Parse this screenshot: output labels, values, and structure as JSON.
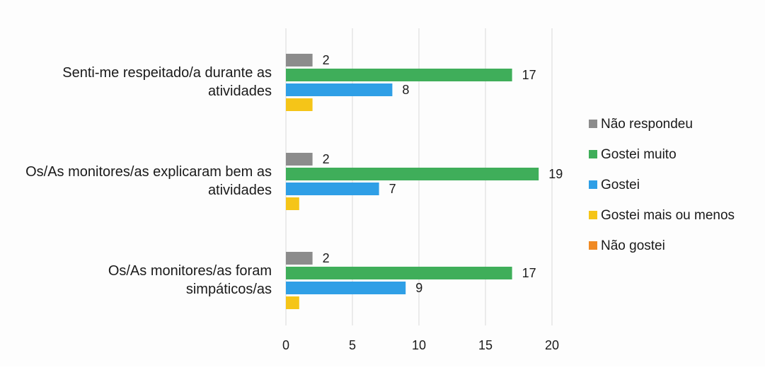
{
  "chart_data": {
    "type": "bar",
    "orientation": "horizontal",
    "categories": [
      [
        "Senti-me respeitado/a durante as",
        "atividades"
      ],
      [
        "Os/As monitores/as explicaram bem as",
        "atividades"
      ],
      [
        "Os/As monitores/as foram",
        "simpáticos/as"
      ]
    ],
    "series": [
      {
        "name": "Não respondeu",
        "color": "#8c8c8c",
        "values": [
          2,
          2,
          2
        ],
        "labels": [
          "2",
          "2",
          "2"
        ]
      },
      {
        "name": "Gostei muito",
        "color": "#3fae5a",
        "values": [
          17,
          19,
          17
        ],
        "labels": [
          "17",
          "19",
          "17"
        ]
      },
      {
        "name": "Gostei",
        "color": "#2f9fe6",
        "values": [
          8,
          7,
          9
        ],
        "labels": [
          "8",
          "7",
          "9"
        ]
      },
      {
        "name": "Gostei mais ou menos",
        "color": "#f5c518",
        "values": [
          2,
          1,
          1
        ],
        "labels": [
          "",
          "",
          ""
        ]
      },
      {
        "name": "Não gostei",
        "color": "#f08a24",
        "values": [
          0,
          0,
          0
        ],
        "labels": [
          "",
          "",
          ""
        ]
      }
    ],
    "xlim": [
      0,
      20
    ],
    "xticks": [
      0,
      5,
      10,
      15,
      20
    ],
    "xtick_labels": [
      "0",
      "5",
      "10",
      "15",
      "20"
    ],
    "title": "",
    "xlabel": "",
    "ylabel": "",
    "grid": "vertical",
    "legend": "right"
  }
}
